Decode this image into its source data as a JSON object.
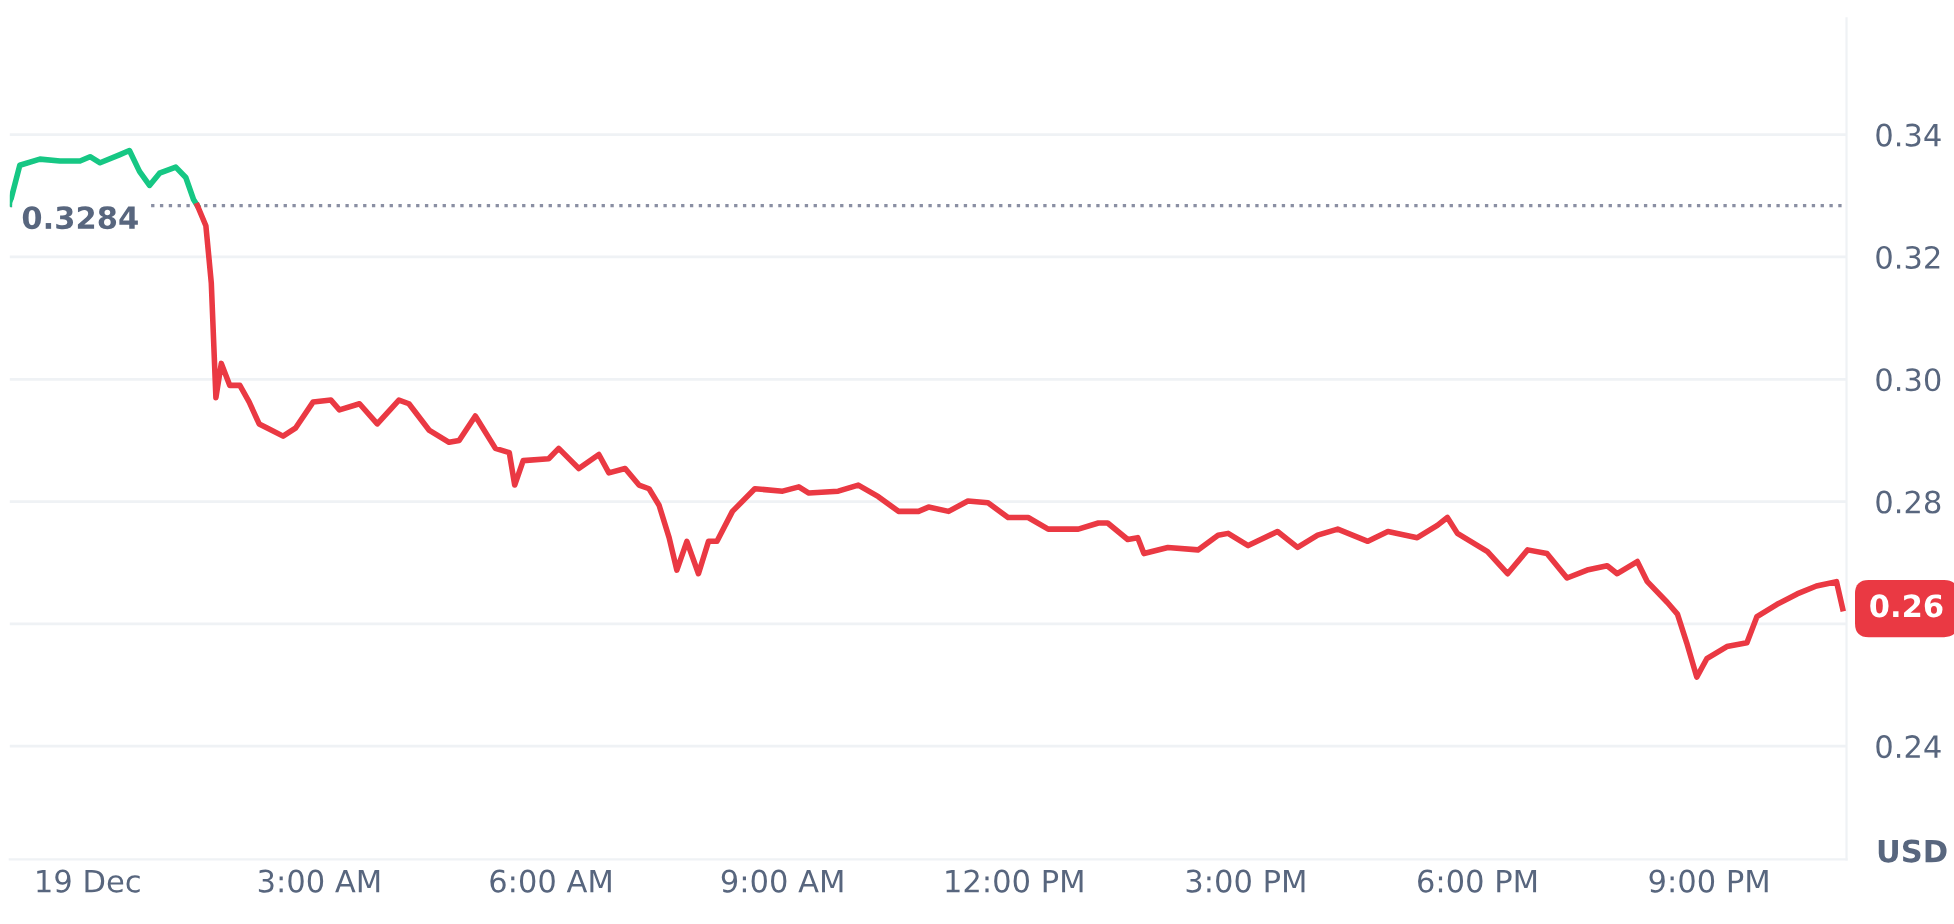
{
  "chart_data": {
    "type": "line",
    "ylabel": "USD",
    "series": [
      {
        "color": "#16c784",
        "x": [
          -1.01,
          -0.88,
          -0.62,
          -0.36,
          -0.1,
          0.03,
          0.16,
          0.41,
          0.54,
          0.67,
          0.8,
          0.93,
          1.14,
          1.27,
          1.37,
          1.42
        ],
        "values": [
          0.3287,
          0.335,
          0.336,
          0.3357,
          0.3357,
          0.3364,
          0.3354,
          0.3367,
          0.3374,
          0.334,
          0.3317,
          0.3337,
          0.3347,
          0.333,
          0.3294,
          0.3284
        ]
      },
      {
        "color": "#ea3943",
        "x": [
          1.42,
          1.53,
          1.6,
          1.66,
          1.73,
          1.84,
          1.97,
          2.09,
          2.22,
          2.33,
          2.53,
          2.69,
          2.92,
          3.15,
          3.26,
          3.52,
          3.75,
          4.03,
          4.16,
          4.42,
          4.68,
          4.81,
          5.02,
          5.28,
          5.46,
          5.53,
          5.64,
          5.97,
          6.1,
          6.36,
          6.62,
          6.75,
          6.96,
          7.14,
          7.27,
          7.4,
          7.53,
          7.63,
          7.76,
          7.91,
          8.04,
          8.15,
          8.35,
          8.64,
          9.0,
          9.21,
          9.34,
          9.72,
          9.98,
          10.24,
          10.5,
          10.76,
          10.89,
          11.15,
          11.4,
          11.66,
          11.92,
          12.18,
          12.44,
          12.83,
          13.09,
          13.21,
          13.47,
          13.6,
          13.68,
          13.99,
          14.38,
          14.64,
          14.77,
          15.03,
          15.41,
          15.67,
          15.93,
          16.19,
          16.58,
          16.84,
          17.22,
          17.48,
          17.61,
          17.74,
          18.13,
          18.39,
          18.65,
          18.9,
          19.16,
          19.42,
          19.68,
          19.81,
          20.07,
          20.2,
          20.46,
          20.59,
          20.71,
          20.84,
          20.97,
          21.23,
          21.49,
          21.62,
          21.88,
          22.14,
          22.39,
          22.65,
          22.73
        ],
        "values": [
          0.3284,
          0.3251,
          0.3158,
          0.297,
          0.3026,
          0.299,
          0.299,
          0.2963,
          0.2927,
          0.292,
          0.2907,
          0.292,
          0.2963,
          0.2966,
          0.295,
          0.296,
          0.2927,
          0.2966,
          0.296,
          0.2917,
          0.2897,
          0.29,
          0.294,
          0.2887,
          0.288,
          0.2827,
          0.2867,
          0.287,
          0.2887,
          0.2854,
          0.2877,
          0.2847,
          0.2854,
          0.2827,
          0.2821,
          0.2794,
          0.2741,
          0.2688,
          0.2735,
          0.2682,
          0.2735,
          0.2735,
          0.2784,
          0.2821,
          0.2817,
          0.2824,
          0.2814,
          0.2817,
          0.2827,
          0.2808,
          0.2784,
          0.2784,
          0.2791,
          0.2784,
          0.2801,
          0.2798,
          0.2774,
          0.2774,
          0.2755,
          0.2755,
          0.2765,
          0.2765,
          0.2738,
          0.2741,
          0.2715,
          0.2725,
          0.2721,
          0.2745,
          0.2748,
          0.2728,
          0.2751,
          0.2725,
          0.2745,
          0.2755,
          0.2735,
          0.2751,
          0.2741,
          0.2761,
          0.2774,
          0.2748,
          0.2718,
          0.2682,
          0.2721,
          0.2715,
          0.2675,
          0.2688,
          0.2695,
          0.2682,
          0.2702,
          0.2669,
          0.2635,
          0.2616,
          0.2569,
          0.2513,
          0.2543,
          0.2563,
          0.2569,
          0.2612,
          0.2632,
          0.2649,
          0.2662,
          0.2669,
          0.2625
        ]
      }
    ],
    "xlim": [
      -1.01,
      22.78
    ],
    "xticks": [
      {
        "value": 0,
        "label": "19 Dec"
      },
      {
        "value": 3,
        "label": "3:00 AM"
      },
      {
        "value": 6,
        "label": "6:00 AM"
      },
      {
        "value": 9,
        "label": "9:00 AM"
      },
      {
        "value": 12,
        "label": "12:00 PM"
      },
      {
        "value": 15,
        "label": "3:00 PM"
      },
      {
        "value": 18,
        "label": "6:00 PM"
      },
      {
        "value": 21,
        "label": "9:00 PM"
      }
    ],
    "ylim": [
      0.2215,
      0.359
    ],
    "yticks": [
      {
        "value": 0.24,
        "label": "0.24"
      },
      {
        "value": 0.26,
        "label": null
      },
      {
        "value": 0.28,
        "label": "0.28"
      },
      {
        "value": 0.3,
        "label": "0.30"
      },
      {
        "value": 0.32,
        "label": "0.32"
      },
      {
        "value": 0.34,
        "label": "0.34"
      }
    ],
    "ref_lines": [
      {
        "axis": "y",
        "value": 0.3284,
        "label": "0.3284",
        "color": "#8a8fa3",
        "line_style": "dotted"
      }
    ],
    "annotations": [
      "0.26"
    ],
    "grid": "y",
    "legend": false,
    "marker": "none",
    "line_style": "solid"
  }
}
